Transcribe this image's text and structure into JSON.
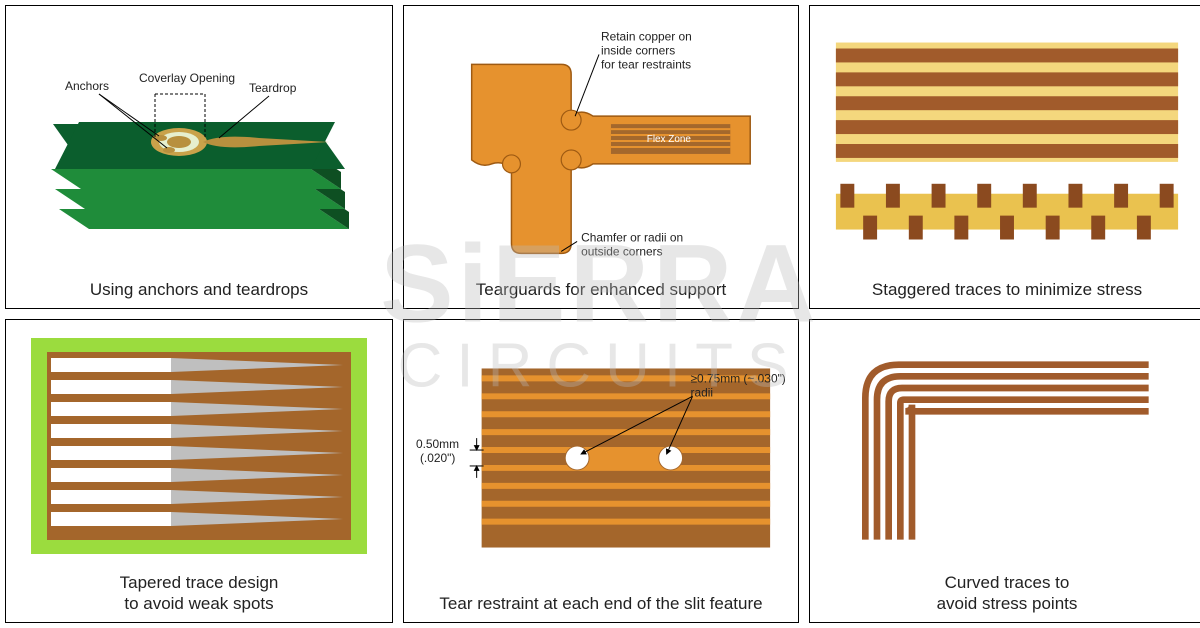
{
  "watermark": {
    "line1": "SiERRA",
    "line2": "CIRCUITS"
  },
  "panels": [
    {
      "caption": "Using anchors and teardrops",
      "labels": {
        "anchors": "Anchors",
        "coverlay": "Coverlay Opening",
        "teardrop": "Teardrop"
      },
      "colors": {
        "board_top": "#0b5e2d",
        "board_side": "#1f8c3a",
        "board_edge": "#0e4f22",
        "pad_outer": "#c9a24a",
        "pad_mid": "#e6efce",
        "pad_inner": "#b8903e",
        "trace": "#b8903e",
        "label": "#222222"
      }
    },
    {
      "caption": "Tearguards for enhanced support",
      "labels": {
        "retain": "Retain copper on\ninside corners\nfor tear restraints",
        "chamfer": "Chamfer or radii on\noutside corners",
        "flex": "Flex Zone"
      },
      "colors": {
        "shape": "#e6922e",
        "shape_edge": "#9e5a12",
        "flex_bg": "#a4682c",
        "flex_stripe": "#e6922e",
        "dot": "#ffffff",
        "text": "#222222"
      }
    },
    {
      "caption": "Staggered traces to minimize stress",
      "colors": {
        "bg": "#f4d77d",
        "stripe": "#a15b2b",
        "bar_bg": "#eac24f",
        "bar_block": "#8b4a1f"
      },
      "top_stripes": 5,
      "bottom_blocks": 15
    },
    {
      "caption": "Tapered trace design\nto avoid weak spots",
      "colors": {
        "frame": "#9bdc3e",
        "board": "#a4662b",
        "trace": "#ffffff",
        "taper": "#bfbfbf"
      },
      "trace_count": 8
    },
    {
      "caption": "Tear restraint at each end of the slit feature",
      "labels": {
        "gap": "0.50mm\n(.020\")",
        "radii": "≥0.75mm (~.030\")\nradii"
      },
      "colors": {
        "board": "#a4662b",
        "trace": "#e6922e",
        "slit_bg": "#e6922e",
        "hole": "#ffffff",
        "arrow": "#000000",
        "text": "#222222"
      },
      "trace_count": 9
    },
    {
      "caption": "Curved traces to\navoid stress points",
      "colors": {
        "trace": "#a15b2b",
        "bg": "#ffffff"
      },
      "trace_count": 5
    }
  ]
}
